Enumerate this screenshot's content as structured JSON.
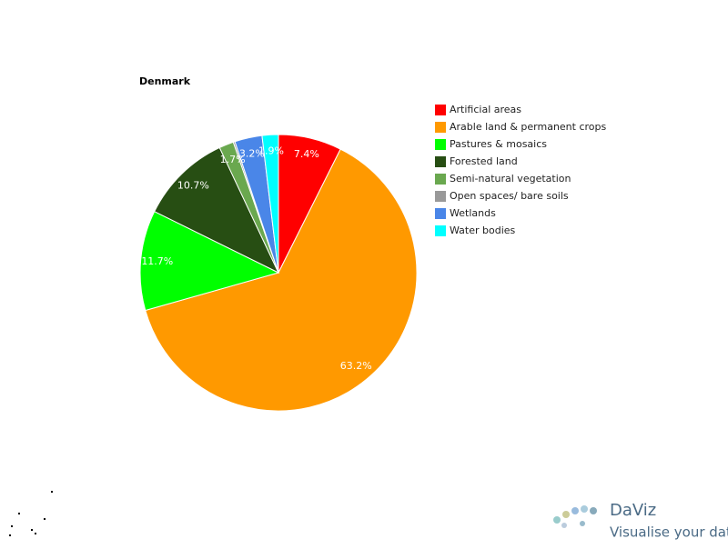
{
  "chart_data": {
    "type": "pie",
    "title": "Denmark",
    "categories": [
      "Artificial areas",
      "Arable land & permanent crops",
      "Pastures & mosaics",
      "Forested land",
      "Semi-natural vegetation",
      "Open spaces/ bare soils",
      "Wetlands",
      "Water bodies"
    ],
    "values": [
      7.4,
      63.2,
      11.7,
      10.7,
      1.7,
      0.2,
      3.2,
      1.9
    ],
    "value_labels": [
      "7.4%",
      "63.2%",
      "11.7%",
      "10.7%",
      "1.7%",
      null,
      "3.2%",
      "1.9%"
    ],
    "colors": [
      "#ff0000",
      "#ff9900",
      "#00ff00",
      "#274e13",
      "#6aa84f",
      "#999999",
      "#4a86e8",
      "#00ffff"
    ],
    "legend": "right"
  },
  "branding": {
    "name": "DaViz",
    "tagline": "Visualise your data"
  }
}
